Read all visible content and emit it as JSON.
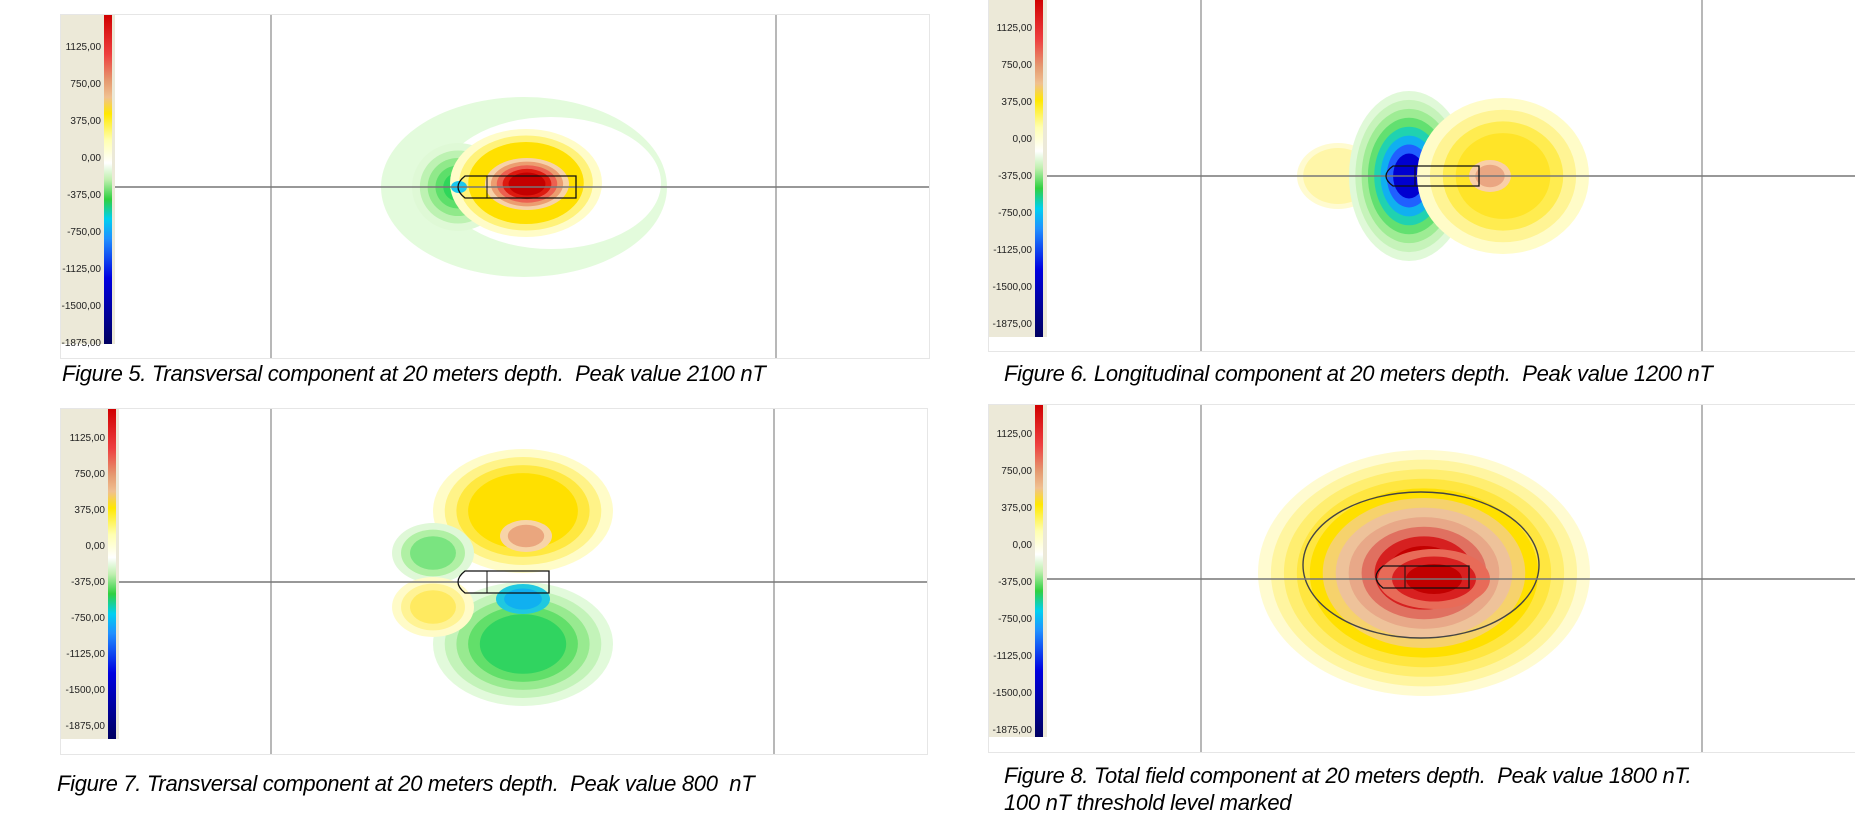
{
  "figures": [
    {
      "caption_lines": [
        "Figure 5. Transversal component at 20 meters depth.  Peak value 2100 nT"
      ]
    },
    {
      "caption_lines": [
        "Figure 6. Longitudinal component at 20 meters depth.  Peak value 1200 nT"
      ]
    },
    {
      "caption_lines": [
        "Figure 7. Transversal component at 20 meters depth.  Peak value 800  nT"
      ]
    },
    {
      "caption_lines": [
        "Figure 8. Total field component at 20 meters depth.  Peak value 1800 nT.",
        "100 nT threshold level marked"
      ]
    }
  ],
  "chart_data": [
    {
      "type": "heatmap",
      "title": "Figure 5. Transversal component at 20 meters depth.  Peak value 2100 nT",
      "colorbar_ticks": [
        "1125,00",
        "750,00",
        "375,00",
        "0,00",
        "-375,00",
        "-750,00",
        "-1125,00",
        "-1500,00",
        "-1875,00"
      ],
      "colorbar_values": [
        1125,
        750,
        375,
        0,
        -375,
        -750,
        -1125,
        -1500,
        -1875
      ],
      "peak_value_nT": 2100,
      "colors": {
        "max": "#d00000",
        "zero": "#ffffff",
        "min": "#000080"
      }
    },
    {
      "type": "heatmap",
      "title": "Figure 6. Longitudinal component at 20 meters depth.  Peak value 1200 nT",
      "colorbar_ticks": [
        "1125,00",
        "750,00",
        "375,00",
        "0,00",
        "-375,00",
        "-750,00",
        "-1125,00",
        "-1500,00",
        "-1875,00"
      ],
      "colorbar_values": [
        1125,
        750,
        375,
        0,
        -375,
        -750,
        -1125,
        -1500,
        -1875
      ],
      "peak_value_nT": 1200,
      "colors": {
        "max": "#d00000",
        "zero": "#ffffff",
        "min": "#000080"
      }
    },
    {
      "type": "heatmap",
      "title": "Figure 7. Transversal component at 20 meters depth.  Peak value 800  nT",
      "colorbar_ticks": [
        "1125,00",
        "750,00",
        "375,00",
        "0,00",
        "-375,00",
        "-750,00",
        "-1125,00",
        "-1500,00",
        "-1875,00"
      ],
      "colorbar_values": [
        1125,
        750,
        375,
        0,
        -375,
        -750,
        -1125,
        -1500,
        -1875
      ],
      "peak_value_nT": 800,
      "colors": {
        "max": "#d00000",
        "zero": "#ffffff",
        "min": "#000080"
      }
    },
    {
      "type": "heatmap",
      "title": "Figure 8. Total field component at 20 meters depth.  Peak value 1800 nT.",
      "colorbar_ticks": [
        "1125,00",
        "750,00",
        "375,00",
        "0,00",
        "-375,00",
        "-750,00",
        "-1125,00",
        "-1500,00",
        "-1875,00"
      ],
      "colorbar_values": [
        1125,
        750,
        375,
        0,
        -375,
        -750,
        -1125,
        -1500,
        -1875
      ],
      "peak_value_nT": 1800,
      "threshold_nT": 100,
      "colors": {
        "max": "#d00000",
        "zero": "#ffffff",
        "min": "#000080"
      }
    }
  ]
}
